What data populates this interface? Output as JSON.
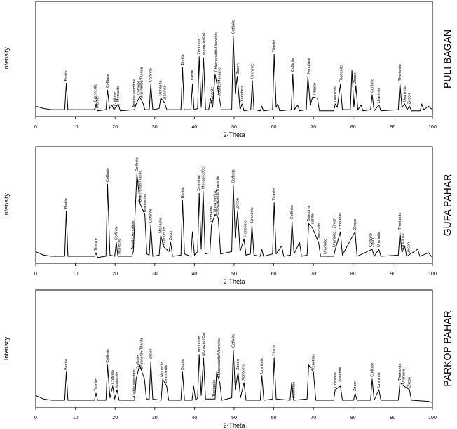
{
  "chart_data": [
    {
      "type": "line",
      "title": "PULI BAGAN",
      "x_label": "2-Theta",
      "y_label": "Intensity",
      "color": "#000000",
      "xlim": [
        0,
        100
      ],
      "ylim": [
        0,
        100
      ],
      "xticks": [
        0,
        10,
        20,
        30,
        40,
        50,
        60,
        70,
        80,
        90,
        100
      ],
      "x": [
        0,
        2,
        4,
        7.3,
        7.7,
        8.1,
        14.8,
        15.2,
        15.6,
        17.7,
        18.1,
        18.6,
        19.2,
        19.7,
        20.8,
        21.3,
        24.9,
        25.3,
        26.2,
        27,
        27.5,
        28.6,
        29,
        29.5,
        31.1,
        31.5,
        32.5,
        33,
        36.6,
        37,
        37.4,
        39.1,
        39.5,
        39.9,
        40.8,
        41.2,
        41.7,
        42.3,
        42.8,
        43.6,
        44,
        44.6,
        45.2,
        46.3,
        46.8,
        49.4,
        49.8,
        50.3,
        50.8,
        51.5,
        52,
        52.5,
        54.2,
        54.6,
        55,
        56.6,
        57,
        57.4,
        59.7,
        60.1,
        60.6,
        61,
        61.5,
        64.4,
        64.8,
        65.2,
        66,
        66.5,
        68.2,
        68.6,
        69.2,
        69.8,
        71,
        71.5,
        75.1,
        75.5,
        76,
        76.8,
        77.3,
        79.3,
        79.7,
        80.2,
        80.7,
        81.2,
        82,
        82.5,
        84.4,
        84.8,
        85.3,
        86.5,
        87,
        91.4,
        91.8,
        92.3,
        93,
        93.6,
        94.2,
        94.7,
        96.9,
        97.3,
        97.8,
        99,
        100
      ],
      "values": [
        9,
        7,
        6,
        6,
        29,
        6,
        6,
        11,
        5,
        6,
        23,
        7,
        10,
        6,
        11,
        5,
        6,
        11,
        17,
        12,
        6,
        6,
        28,
        6,
        7,
        16,
        12,
        6,
        6,
        43,
        6,
        6,
        28,
        6,
        7,
        52,
        8,
        51,
        6,
        6,
        16,
        8,
        37,
        16,
        6,
        6,
        70,
        20,
        35,
        6,
        11,
        5,
        6,
        31,
        6,
        5,
        9,
        5,
        6,
        54,
        8,
        11,
        5,
        6,
        37,
        6,
        10,
        5,
        6,
        35,
        10,
        17,
        16,
        5,
        5,
        11,
        8,
        28,
        6,
        6,
        40,
        8,
        27,
        6,
        10,
        5,
        6,
        19,
        5,
        10,
        5,
        6,
        29,
        8,
        11,
        6,
        9,
        5,
        5,
        11,
        6,
        9,
        6
      ],
      "annotations": [
        {
          "label": "Biotite",
          "x": 7.7
        },
        {
          "label": "Brannerite",
          "x": 15
        },
        {
          "label": "Titanite",
          "x": 15.6
        },
        {
          "label": "Coffinite",
          "x": 18.1
        },
        {
          "label": "Coffinite",
          "x": 20
        },
        {
          "label": "Monazite",
          "x": 20.8
        },
        {
          "label": "Apatite xenotime",
          "x": 24.8
        },
        {
          "label": "Coffinite",
          "x": 26
        },
        {
          "label": "Brannerite/Titanite",
          "x": 26.7
        },
        {
          "label": "Coffinite",
          "x": 29
        },
        {
          "label": "Monazite",
          "x": 31.5
        },
        {
          "label": "Uraninite",
          "x": 32.5
        },
        {
          "label": "Biotite",
          "x": 37
        },
        {
          "label": "Titanite",
          "x": 39.5
        },
        {
          "label": "Xenotime",
          "x": 41.2
        },
        {
          "label": "Monazite(Ce)",
          "x": 42.3
        },
        {
          "label": "Thorianite",
          "x": 44.5
        },
        {
          "label": "Chloroapatite/Uraninite",
          "x": 45.5
        },
        {
          "label": "Apatite/Monazite",
          "x": 46.3
        },
        {
          "label": "Coffinite",
          "x": 49.8
        },
        {
          "label": "Zircon",
          "x": 51
        },
        {
          "label": "Xenotime",
          "x": 52
        },
        {
          "label": "Uraninite",
          "x": 54.6
        },
        {
          "label": "Titanite",
          "x": 60.1
        },
        {
          "label": "Coffinite",
          "x": 64.8
        },
        {
          "label": "Xenotime",
          "x": 68.8
        },
        {
          "label": "Titanite",
          "x": 70.3
        },
        {
          "label": "Uraninite",
          "x": 75.5
        },
        {
          "label": "Thorianite",
          "x": 77
        },
        {
          "label": "Zircon",
          "x": 80.5
        },
        {
          "label": "Coffinite",
          "x": 84.8
        },
        {
          "label": "Uraninite",
          "x": 86.5
        },
        {
          "label": "Thorianite",
          "x": 91.8
        },
        {
          "label": "Uraninite",
          "x": 93
        },
        {
          "label": "Zircon",
          "x": 94.2
        }
      ]
    },
    {
      "type": "line",
      "title": "GUFA PAHAR",
      "x_label": "2-Theta",
      "y_label": "Intensity",
      "color": "#000000",
      "xlim": [
        0,
        100
      ],
      "ylim": [
        0,
        100
      ],
      "xticks": [
        0,
        10,
        20,
        30,
        40,
        50,
        60,
        70,
        80,
        90,
        100
      ],
      "x": [
        0,
        2,
        4,
        7.3,
        7.7,
        8.1,
        14.8,
        15.2,
        15.6,
        17.7,
        18.1,
        18.7,
        19.9,
        20.3,
        20.7,
        24.2,
        24.6,
        25.5,
        26.3,
        27.5,
        28,
        28.6,
        29,
        29.5,
        31.1,
        31.5,
        32.3,
        33.6,
        34,
        34.5,
        36.6,
        37,
        37.5,
        39.1,
        39.5,
        40,
        40.8,
        41.2,
        41.7,
        42.2,
        42.7,
        43.9,
        44.3,
        45.2,
        46,
        46.6,
        49.4,
        49.8,
        50.3,
        50.9,
        51.5,
        52.5,
        53,
        54.1,
        54.5,
        55,
        56.6,
        57,
        57.4,
        59.7,
        60.1,
        60.6,
        62,
        62.5,
        64.2,
        64.6,
        65.1,
        66.5,
        67,
        68.4,
        68.8,
        69.8,
        71.3,
        71.8,
        75.1,
        75.5,
        76.8,
        77.3,
        79.5,
        80.5,
        81,
        84.8,
        85.3,
        86.5,
        87,
        91.4,
        91.8,
        92.3,
        93,
        93.5,
        96.3,
        96.8,
        99,
        100
      ],
      "values": [
        10,
        7,
        6,
        6,
        45,
        6,
        6,
        9,
        5,
        6,
        68,
        7,
        6,
        18,
        6,
        6,
        10,
        77,
        51,
        42,
        8,
        7,
        33,
        6,
        7,
        24,
        14,
        10,
        18,
        6,
        7,
        54,
        8,
        6,
        27,
        7,
        10,
        60,
        12,
        62,
        8,
        9,
        33,
        42,
        39,
        8,
        10,
        67,
        22,
        45,
        10,
        21,
        7,
        8,
        33,
        7,
        6,
        12,
        6,
        8,
        52,
        8,
        15,
        6,
        7,
        36,
        8,
        18,
        6,
        7,
        34,
        30,
        18,
        6,
        6,
        12,
        27,
        7,
        21,
        27,
        6,
        12,
        6,
        12,
        6,
        7,
        27,
        9,
        15,
        6,
        12,
        6,
        9,
        5
      ],
      "annotations": [
        {
          "label": "Biotite",
          "x": 7.7
        },
        {
          "label": "Titanite",
          "x": 15.2
        },
        {
          "label": "Coffinite",
          "x": 18.1
        },
        {
          "label": "Coffinite",
          "x": 20.3
        },
        {
          "label": "Monazite",
          "x": 21
        },
        {
          "label": "Apatite xenotime",
          "x": 24.5
        },
        {
          "label": "Coffinite",
          "x": 25.5
        },
        {
          "label": "Brannerite/Titanite",
          "x": 26.3
        },
        {
          "label": "Brannerite",
          "x": 27.5
        },
        {
          "label": "Coffinite",
          "x": 29
        },
        {
          "label": "Monazite",
          "x": 31.5
        },
        {
          "label": "Brannerite",
          "x": 32.3
        },
        {
          "label": "Zircon",
          "x": 34
        },
        {
          "label": "Biotite",
          "x": 37
        },
        {
          "label": "Xenotime",
          "x": 41.2
        },
        {
          "label": "Monazite(Ce)",
          "x": 42.2
        },
        {
          "label": "Thorianite",
          "x": 44.3
        },
        {
          "label": "Monazite(La)",
          "x": 45.2
        },
        {
          "label": "Chloroapatite/Uraninite",
          "x": 45.9
        },
        {
          "label": "Coffinite",
          "x": 49.8
        },
        {
          "label": "Zircon",
          "x": 50.9
        },
        {
          "label": "Xenotime",
          "x": 52.8
        },
        {
          "label": "Uraninite",
          "x": 54.5
        },
        {
          "label": "Titanite",
          "x": 60.1
        },
        {
          "label": "Coffinite",
          "x": 64.6
        },
        {
          "label": "Xenotime",
          "x": 68.8
        },
        {
          "label": "Titanite",
          "x": 69.8
        },
        {
          "label": "Thorianite",
          "x": 71.4
        },
        {
          "label": "Uraninite",
          "x": 73
        },
        {
          "label": "Uraninite / Zircon",
          "x": 75.3
        },
        {
          "label": "Thorianite",
          "x": 76.8
        },
        {
          "label": "Zircon",
          "x": 80.5
        },
        {
          "label": "Coffinite",
          "x": 84.5
        },
        {
          "label": "Zircon",
          "x": 85
        },
        {
          "label": "Uraninite",
          "x": 86.5
        },
        {
          "label": "Thorianite",
          "x": 91.8
        },
        {
          "label": "Uraninite",
          "x": 92.5
        },
        {
          "label": "Zircon",
          "x": 94
        }
      ]
    },
    {
      "type": "line",
      "title": "PARKOP PAHAR",
      "x_label": "2-Theta",
      "y_label": "Intensity",
      "color": "#000000",
      "xlim": [
        0,
        100
      ],
      "ylim": [
        0,
        100
      ],
      "xticks": [
        0,
        10,
        20,
        30,
        40,
        50,
        60,
        70,
        80,
        90,
        100
      ],
      "x": [
        0,
        2,
        4,
        7.3,
        7.7,
        8.1,
        14.8,
        15.2,
        15.6,
        17.7,
        18.1,
        18.7,
        19.4,
        19.9,
        20.5,
        21,
        24.9,
        25.3,
        26.2,
        27.4,
        27.9,
        28.6,
        29,
        29.5,
        31.6,
        32,
        33,
        33.5,
        36.6,
        37,
        37.5,
        39.4,
        39.8,
        40.3,
        40.8,
        41.2,
        41.7,
        42.3,
        42.8,
        45.2,
        45.6,
        46.4,
        46.9,
        49.4,
        49.8,
        50.3,
        51,
        51.6,
        52.5,
        53,
        56.6,
        57,
        57.5,
        59.7,
        60.1,
        60.6,
        64.1,
        64.5,
        65,
        68.4,
        68.8,
        70,
        70.6,
        75.1,
        75.5,
        76.8,
        77.3,
        80.1,
        80.5,
        81,
        84.4,
        84.8,
        85.3,
        86.5,
        87,
        91.4,
        91.8,
        92.8,
        94.2,
        94.7,
        99,
        100
      ],
      "values": [
        10,
        7,
        6,
        6,
        30,
        6,
        6,
        12,
        6,
        6,
        36,
        8,
        18,
        7,
        15,
        6,
        6,
        24,
        36,
        24,
        7,
        7,
        39,
        7,
        6,
        24,
        18,
        6,
        6,
        30,
        6,
        6,
        18,
        6,
        8,
        45,
        10,
        42,
        7,
        7,
        30,
        21,
        6,
        8,
        49,
        15,
        30,
        8,
        21,
        6,
        6,
        27,
        6,
        7,
        42,
        7,
        6,
        21,
        6,
        7,
        36,
        30,
        6,
        6,
        15,
        18,
        6,
        6,
        12,
        6,
        6,
        24,
        6,
        15,
        6,
        6,
        21,
        18,
        15,
        6,
        5,
        4
      ],
      "annotations": [
        {
          "label": "Biotite",
          "x": 7.7
        },
        {
          "label": "Titanite",
          "x": 15.2
        },
        {
          "label": "Coffinite",
          "x": 18.1
        },
        {
          "label": "Coffinite",
          "x": 19.4
        },
        {
          "label": "Monazite",
          "x": 20.5
        },
        {
          "label": "Apatite xenotime",
          "x": 24.8
        },
        {
          "label": "Coffinite",
          "x": 25.8
        },
        {
          "label": "Brannerite/Titanite",
          "x": 26.7
        },
        {
          "label": "Zircon",
          "x": 29
        },
        {
          "label": "Monazite",
          "x": 31.8
        },
        {
          "label": "Brannerite",
          "x": 32.8
        },
        {
          "label": "Biotite",
          "x": 37
        },
        {
          "label": "Xenotime",
          "x": 41.2
        },
        {
          "label": "Monazite(Ce)",
          "x": 42.3
        },
        {
          "label": "Thorianite",
          "x": 45
        },
        {
          "label": "Chloroapatite/Uraninite",
          "x": 46.2
        },
        {
          "label": "Coffinite",
          "x": 49.8
        },
        {
          "label": "Zircon",
          "x": 51
        },
        {
          "label": "Xenotime",
          "x": 52.3
        },
        {
          "label": "Uraninite",
          "x": 57
        },
        {
          "label": "Zircon",
          "x": 60.1
        },
        {
          "label": "Xenotime",
          "x": 65
        },
        {
          "label": "Xenotime",
          "x": 70
        },
        {
          "label": "Uraninite",
          "x": 75.5
        },
        {
          "label": "Thorianite",
          "x": 76.8
        },
        {
          "label": "Zircon",
          "x": 80.5
        },
        {
          "label": "Coffinite",
          "x": 84.8
        },
        {
          "label": "Uraninite",
          "x": 86.5
        },
        {
          "label": "Thorianite",
          "x": 91.8
        },
        {
          "label": "Uraninite",
          "x": 92.8
        },
        {
          "label": "Zircon",
          "x": 94.2
        }
      ]
    }
  ]
}
